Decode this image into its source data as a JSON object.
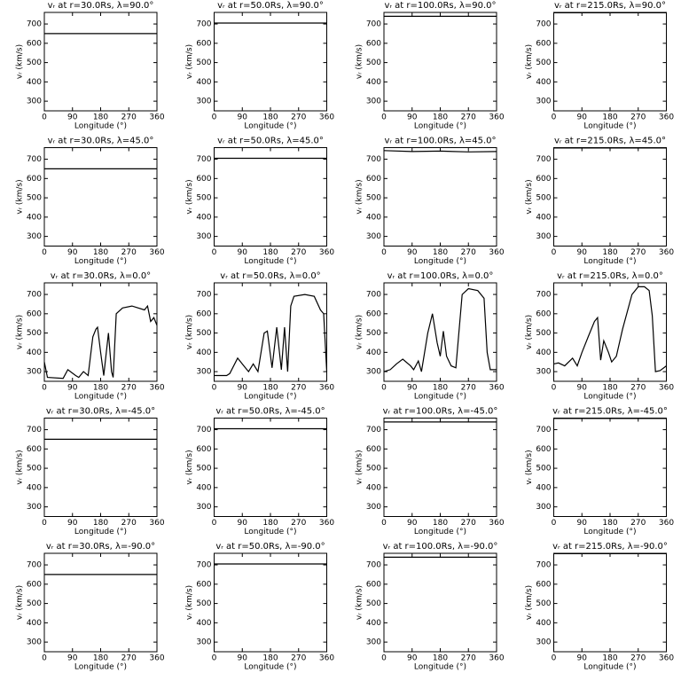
{
  "chart_data": [
    {
      "type": "line",
      "title": "vᵣ at r=30.0Rs, λ=90.0°",
      "xlabel": "Longitude (°)",
      "ylabel": "vᵣ (km/s)",
      "x": [
        0,
        360
      ],
      "values": [
        650,
        650
      ],
      "xlim": [
        0,
        360
      ],
      "ylim": [
        250,
        760
      ],
      "xticks": [
        0,
        90,
        180,
        270,
        360
      ],
      "yticks": [
        300,
        400,
        500,
        600,
        700
      ],
      "color": "#000000"
    },
    {
      "type": "line",
      "title": "vᵣ at r=50.0Rs, λ=90.0°",
      "xlabel": "Longitude (°)",
      "ylabel": "vᵣ (km/s)",
      "x": [
        0,
        360
      ],
      "values": [
        705,
        705
      ],
      "xlim": [
        0,
        360
      ],
      "ylim": [
        250,
        760
      ],
      "xticks": [
        0,
        90,
        180,
        270,
        360
      ],
      "yticks": [
        300,
        400,
        500,
        600,
        700
      ],
      "color": "#000000"
    },
    {
      "type": "line",
      "title": "vᵣ at r=100.0Rs, λ=90.0°",
      "xlabel": "Longitude (°)",
      "ylabel": "vᵣ (km/s)",
      "x": [
        0,
        360
      ],
      "values": [
        740,
        740
      ],
      "xlim": [
        0,
        360
      ],
      "ylim": [
        250,
        760
      ],
      "xticks": [
        0,
        90,
        180,
        270,
        360
      ],
      "yticks": [
        300,
        400,
        500,
        600,
        700
      ],
      "color": "#000000"
    },
    {
      "type": "line",
      "title": "vᵣ at r=215.0Rs, λ=90.0°",
      "xlabel": "Longitude (°)",
      "ylabel": "vᵣ (km/s)",
      "x": [
        0,
        360
      ],
      "values": [
        758,
        758
      ],
      "xlim": [
        0,
        360
      ],
      "ylim": [
        250,
        760
      ],
      "xticks": [
        0,
        90,
        180,
        270,
        360
      ],
      "yticks": [
        300,
        400,
        500,
        600,
        700
      ],
      "color": "#000000"
    },
    {
      "type": "line",
      "title": "vᵣ at r=30.0Rs, λ=45.0°",
      "xlabel": "Longitude (°)",
      "ylabel": "vᵣ (km/s)",
      "x": [
        0,
        360
      ],
      "values": [
        650,
        650
      ],
      "xlim": [
        0,
        360
      ],
      "ylim": [
        250,
        760
      ],
      "xticks": [
        0,
        90,
        180,
        270,
        360
      ],
      "yticks": [
        300,
        400,
        500,
        600,
        700
      ],
      "color": "#000000"
    },
    {
      "type": "line",
      "title": "vᵣ at r=50.0Rs, λ=45.0°",
      "xlabel": "Longitude (°)",
      "ylabel": "vᵣ (km/s)",
      "x": [
        0,
        360
      ],
      "values": [
        705,
        705
      ],
      "xlim": [
        0,
        360
      ],
      "ylim": [
        250,
        760
      ],
      "xticks": [
        0,
        90,
        180,
        270,
        360
      ],
      "yticks": [
        300,
        400,
        500,
        600,
        700
      ],
      "color": "#000000"
    },
    {
      "type": "line",
      "title": "vᵣ at r=100.0Rs, λ=45.0°",
      "xlabel": "Longitude (°)",
      "ylabel": "vᵣ (km/s)",
      "x": [
        0,
        90,
        180,
        270,
        360
      ],
      "values": [
        745,
        740,
        742,
        738,
        740
      ],
      "xlim": [
        0,
        360
      ],
      "ylim": [
        250,
        760
      ],
      "xticks": [
        0,
        90,
        180,
        270,
        360
      ],
      "yticks": [
        300,
        400,
        500,
        600,
        700
      ],
      "color": "#000000"
    },
    {
      "type": "line",
      "title": "vᵣ at r=215.0Rs, λ=45.0°",
      "xlabel": "Longitude (°)",
      "ylabel": "vᵣ (km/s)",
      "x": [
        0,
        360
      ],
      "values": [
        758,
        758
      ],
      "xlim": [
        0,
        360
      ],
      "ylim": [
        250,
        760
      ],
      "xticks": [
        0,
        90,
        180,
        270,
        360
      ],
      "yticks": [
        300,
        400,
        500,
        600,
        700
      ],
      "color": "#000000"
    },
    {
      "type": "line",
      "title": "vᵣ at r=30.0Rs, λ=0.0°",
      "xlabel": "Longitude (°)",
      "ylabel": "vᵣ (km/s)",
      "x": [
        0,
        10,
        60,
        75,
        100,
        110,
        125,
        140,
        155,
        165,
        170,
        180,
        190,
        205,
        215,
        220,
        230,
        250,
        280,
        320,
        330,
        340,
        350,
        360
      ],
      "values": [
        350,
        270,
        265,
        310,
        280,
        270,
        300,
        280,
        480,
        520,
        530,
        400,
        280,
        500,
        300,
        270,
        600,
        630,
        640,
        620,
        640,
        560,
        580,
        540
      ],
      "xlim": [
        0,
        360
      ],
      "ylim": [
        250,
        760
      ],
      "xticks": [
        0,
        90,
        180,
        270,
        360
      ],
      "yticks": [
        300,
        400,
        500,
        600,
        700
      ],
      "color": "#000000"
    },
    {
      "type": "line",
      "title": "vᵣ at r=50.0Rs, λ=0.0°",
      "xlabel": "Longitude (°)",
      "ylabel": "vᵣ (km/s)",
      "x": [
        0,
        40,
        50,
        75,
        95,
        110,
        125,
        140,
        160,
        170,
        185,
        200,
        215,
        225,
        235,
        245,
        255,
        290,
        320,
        340,
        350,
        360
      ],
      "values": [
        280,
        280,
        290,
        370,
        330,
        300,
        340,
        300,
        500,
        510,
        320,
        530,
        310,
        530,
        300,
        640,
        690,
        700,
        690,
        620,
        600,
        300
      ],
      "xlim": [
        0,
        360
      ],
      "ylim": [
        250,
        760
      ],
      "xticks": [
        0,
        90,
        180,
        270,
        360
      ],
      "yticks": [
        300,
        400,
        500,
        600,
        700
      ],
      "color": "#000000"
    },
    {
      "type": "line",
      "title": "vᵣ at r=100.0Rs, λ=0.0°",
      "xlabel": "Longitude (°)",
      "ylabel": "vᵣ (km/s)",
      "x": [
        0,
        20,
        40,
        60,
        85,
        95,
        110,
        120,
        140,
        155,
        170,
        180,
        190,
        200,
        215,
        230,
        250,
        270,
        300,
        320,
        330,
        340,
        360
      ],
      "values": [
        300,
        310,
        340,
        365,
        330,
        310,
        355,
        300,
        500,
        600,
        450,
        380,
        510,
        380,
        330,
        320,
        700,
        730,
        720,
        680,
        400,
        310,
        310
      ],
      "xlim": [
        0,
        360
      ],
      "ylim": [
        250,
        760
      ],
      "xticks": [
        0,
        90,
        180,
        270,
        360
      ],
      "yticks": [
        300,
        400,
        500,
        600,
        700
      ],
      "color": "#000000"
    },
    {
      "type": "line",
      "title": "vᵣ at r=215.0Rs, λ=0.0°",
      "xlabel": "Longitude (°)",
      "ylabel": "vᵣ (km/s)",
      "x": [
        0,
        15,
        35,
        60,
        75,
        90,
        110,
        130,
        140,
        150,
        160,
        175,
        185,
        200,
        220,
        250,
        270,
        290,
        305,
        315,
        325,
        340,
        360
      ],
      "values": [
        340,
        345,
        330,
        370,
        330,
        400,
        480,
        560,
        580,
        360,
        460,
        400,
        350,
        380,
        520,
        700,
        740,
        740,
        720,
        590,
        300,
        305,
        330
      ],
      "xlim": [
        0,
        360
      ],
      "ylim": [
        250,
        760
      ],
      "xticks": [
        0,
        90,
        180,
        270,
        360
      ],
      "yticks": [
        300,
        400,
        500,
        600,
        700
      ],
      "color": "#000000"
    },
    {
      "type": "line",
      "title": "vᵣ at r=30.0Rs, λ=-45.0°",
      "xlabel": "Longitude (°)",
      "ylabel": "vᵣ (km/s)",
      "x": [
        0,
        360
      ],
      "values": [
        650,
        650
      ],
      "xlim": [
        0,
        360
      ],
      "ylim": [
        250,
        760
      ],
      "xticks": [
        0,
        90,
        180,
        270,
        360
      ],
      "yticks": [
        300,
        400,
        500,
        600,
        700
      ],
      "color": "#000000"
    },
    {
      "type": "line",
      "title": "vᵣ at r=50.0Rs, λ=-45.0°",
      "xlabel": "Longitude (°)",
      "ylabel": "vᵣ (km/s)",
      "x": [
        0,
        360
      ],
      "values": [
        705,
        705
      ],
      "xlim": [
        0,
        360
      ],
      "ylim": [
        250,
        760
      ],
      "xticks": [
        0,
        90,
        180,
        270,
        360
      ],
      "yticks": [
        300,
        400,
        500,
        600,
        700
      ],
      "color": "#000000"
    },
    {
      "type": "line",
      "title": "vᵣ at r=100.0Rs, λ=-45.0°",
      "xlabel": "Longitude (°)",
      "ylabel": "vᵣ (km/s)",
      "x": [
        0,
        360
      ],
      "values": [
        740,
        740
      ],
      "xlim": [
        0,
        360
      ],
      "ylim": [
        250,
        760
      ],
      "xticks": [
        0,
        90,
        180,
        270,
        360
      ],
      "yticks": [
        300,
        400,
        500,
        600,
        700
      ],
      "color": "#000000"
    },
    {
      "type": "line",
      "title": "vᵣ at r=215.0Rs, λ=-45.0°",
      "xlabel": "Longitude (°)",
      "ylabel": "vᵣ (km/s)",
      "x": [
        0,
        360
      ],
      "values": [
        758,
        758
      ],
      "xlim": [
        0,
        360
      ],
      "ylim": [
        250,
        760
      ],
      "xticks": [
        0,
        90,
        180,
        270,
        360
      ],
      "yticks": [
        300,
        400,
        500,
        600,
        700
      ],
      "color": "#000000"
    },
    {
      "type": "line",
      "title": "vᵣ at r=30.0Rs, λ=-90.0°",
      "xlabel": "Longitude (°)",
      "ylabel": "vᵣ (km/s)",
      "x": [
        0,
        360
      ],
      "values": [
        650,
        650
      ],
      "xlim": [
        0,
        360
      ],
      "ylim": [
        250,
        760
      ],
      "xticks": [
        0,
        90,
        180,
        270,
        360
      ],
      "yticks": [
        300,
        400,
        500,
        600,
        700
      ],
      "color": "#000000"
    },
    {
      "type": "line",
      "title": "vᵣ at r=50.0Rs, λ=-90.0°",
      "xlabel": "Longitude (°)",
      "ylabel": "vᵣ (km/s)",
      "x": [
        0,
        360
      ],
      "values": [
        705,
        705
      ],
      "xlim": [
        0,
        360
      ],
      "ylim": [
        250,
        760
      ],
      "xticks": [
        0,
        90,
        180,
        270,
        360
      ],
      "yticks": [
        300,
        400,
        500,
        600,
        700
      ],
      "color": "#000000"
    },
    {
      "type": "line",
      "title": "vᵣ at r=100.0Rs, λ=-90.0°",
      "xlabel": "Longitude (°)",
      "ylabel": "vᵣ (km/s)",
      "x": [
        0,
        360
      ],
      "values": [
        740,
        740
      ],
      "xlim": [
        0,
        360
      ],
      "ylim": [
        250,
        760
      ],
      "xticks": [
        0,
        90,
        180,
        270,
        360
      ],
      "yticks": [
        300,
        400,
        500,
        600,
        700
      ],
      "color": "#000000"
    },
    {
      "type": "line",
      "title": "vᵣ at r=215.0Rs, λ=-90.0°",
      "xlabel": "Longitude (°)",
      "ylabel": "vᵣ (km/s)",
      "x": [
        0,
        360
      ],
      "values": [
        758,
        758
      ],
      "xlim": [
        0,
        360
      ],
      "ylim": [
        250,
        760
      ],
      "xticks": [
        0,
        90,
        180,
        270,
        360
      ],
      "yticks": [
        300,
        400,
        500,
        600,
        700
      ],
      "color": "#000000"
    }
  ]
}
